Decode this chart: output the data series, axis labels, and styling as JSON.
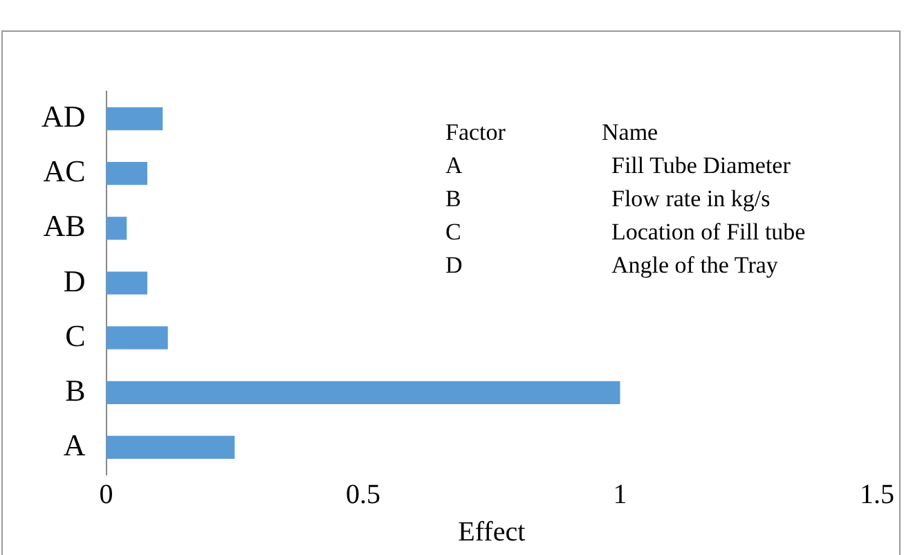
{
  "chart_data": {
    "type": "bar",
    "orientation": "horizontal",
    "xlabel": "Effect",
    "categories": [
      "AD",
      "AC",
      "AB",
      "D",
      "C",
      "B",
      "A"
    ],
    "values": [
      0.11,
      0.08,
      0.04,
      0.08,
      0.12,
      1.0,
      0.25
    ],
    "color": "#5b9bd5",
    "xlim": [
      0,
      1.5
    ],
    "xticks": [
      0,
      0.5,
      1,
      1.5
    ],
    "grid": false,
    "annotations": [
      "Factor",
      "Name",
      "A",
      "Fill Tube Diameter",
      "B",
      "Flow rate in kg/s",
      "C",
      "Location of Fill tube",
      "D",
      "Angle of the Tray"
    ]
  }
}
